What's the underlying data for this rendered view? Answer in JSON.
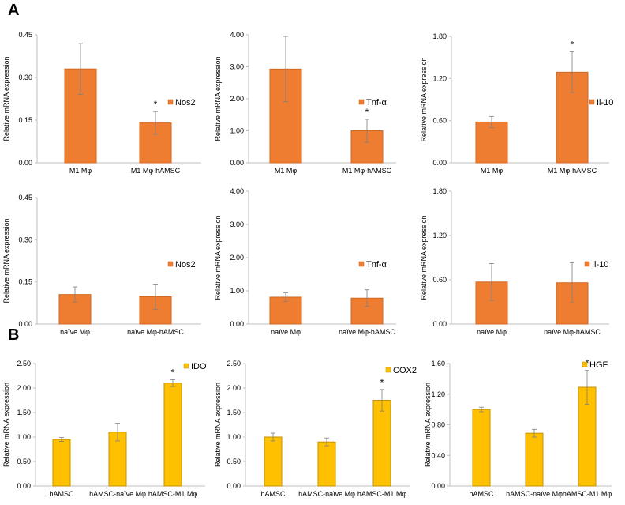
{
  "panel_labels": [
    "A",
    "B"
  ],
  "colors": {
    "orange_fill": "#ee7d31",
    "orange_edge": "#d06820",
    "yellow_fill": "#ffc000",
    "yellow_edge": "#c59300",
    "axis": "#bfbfbf",
    "text": "#000000"
  },
  "chart_data": [
    {
      "type": "bar",
      "ylabel": "Relative mRNA expression",
      "legend": "Nos2",
      "legend_pos": "right",
      "categories": [
        "M1 Mφ",
        "M1 Mφ-hAMSC"
      ],
      "values": [
        0.33,
        0.14
      ],
      "errors": [
        0.09,
        0.04
      ],
      "ylim": [
        0,
        0.45
      ],
      "ticks": [
        "0.00",
        "0.15",
        "0.30",
        "0.45"
      ],
      "significance": [
        "",
        "*"
      ],
      "color": "orange"
    },
    {
      "type": "bar",
      "ylabel": "Relative mRNA expression",
      "legend": "Tnf-α",
      "legend_pos": "right",
      "categories": [
        "M1 Mφ",
        "M1 Mφ-hAMSC"
      ],
      "values": [
        2.93,
        1.0
      ],
      "errors": [
        1.02,
        0.36
      ],
      "ylim": [
        0,
        4
      ],
      "ticks": [
        "0.00",
        "1.00",
        "2.00",
        "3.00",
        "4.00"
      ],
      "significance": [
        "",
        "*"
      ],
      "color": "orange"
    },
    {
      "type": "bar",
      "ylabel": "Relative mRNA expression",
      "legend": "Il-10",
      "legend_pos": "right",
      "categories": [
        "M1 Mφ",
        "M1 Mφ-hAMSC"
      ],
      "values": [
        0.58,
        1.29
      ],
      "errors": [
        0.08,
        0.29
      ],
      "ylim": [
        0,
        1.8
      ],
      "ticks": [
        "0.00",
        "0.60",
        "1.20",
        "1.80"
      ],
      "significance": [
        "",
        "*"
      ],
      "color": "orange"
    },
    {
      "type": "bar",
      "ylabel": "Relative mRNA expression",
      "legend": "Nos2",
      "legend_pos": "right",
      "categories": [
        "naïve Mφ",
        "naïve Mφ-hAMSC"
      ],
      "values": [
        0.105,
        0.097
      ],
      "errors": [
        0.027,
        0.045
      ],
      "ylim": [
        0,
        0.45
      ],
      "ticks": [
        "0.00",
        "0.15",
        "0.30",
        "0.45"
      ],
      "significance": [
        "",
        ""
      ],
      "color": "orange"
    },
    {
      "type": "bar",
      "ylabel": "Relative mRNA  expression",
      "legend": "Tnf-α",
      "legend_pos": "right",
      "categories": [
        "naïve Mφ",
        "naïve Mφ-hAMSC"
      ],
      "values": [
        0.81,
        0.78
      ],
      "errors": [
        0.13,
        0.25
      ],
      "ylim": [
        0,
        4
      ],
      "ticks": [
        "0.00",
        "1.00",
        "2.00",
        "3.00",
        "4.00"
      ],
      "significance": [
        "",
        ""
      ],
      "color": "orange"
    },
    {
      "type": "bar",
      "ylabel": "Relative mRNA expression",
      "legend": "Il-10",
      "legend_pos": "right",
      "categories": [
        "naïve Mφ",
        "naïve Mφ-hAMSC"
      ],
      "values": [
        0.57,
        0.56
      ],
      "errors": [
        0.25,
        0.27
      ],
      "ylim": [
        0,
        1.8
      ],
      "ticks": [
        "0.00",
        "0.60",
        "1.20",
        "1.80"
      ],
      "significance": [
        "",
        ""
      ],
      "color": "orange"
    },
    {
      "type": "bar",
      "ylabel": "Relative mRNA expression",
      "legend": "IDO",
      "legend_pos": "top-right",
      "categories": [
        "hAMSC",
        "hAMSC-naïve Mφ",
        "hAMSC-M1 Mφ"
      ],
      "values": [
        0.95,
        1.1,
        2.1
      ],
      "errors": [
        0.04,
        0.18,
        0.07
      ],
      "ylim": [
        0,
        2.5
      ],
      "ticks": [
        "0.00",
        "0.50",
        "1.00",
        "1.50",
        "2.00",
        "2.50"
      ],
      "significance": [
        "",
        "",
        "*"
      ],
      "color": "yellow"
    },
    {
      "type": "bar",
      "ylabel": "Relative mRNA expression",
      "legend": "COX2",
      "legend_pos": "top-right",
      "categories": [
        "hAMSC",
        "hAMSC-naïve Mφ",
        "hAMSC-M1 Mφ"
      ],
      "values": [
        1.0,
        0.9,
        1.75
      ],
      "errors": [
        0.08,
        0.08,
        0.22
      ],
      "ylim": [
        0,
        2.5
      ],
      "ticks": [
        "0.00",
        "0.50",
        "1.00",
        "1.50",
        "2.00",
        "2.50"
      ],
      "significance": [
        "",
        "",
        "*"
      ],
      "color": "yellow"
    },
    {
      "type": "bar",
      "ylabel": "Relative mRNA expression",
      "legend": "HGF",
      "legend_pos": "top-right",
      "categories": [
        "hAMSC",
        "hAMSC-naïve Mφ",
        "hAMSC-M1 Mφ"
      ],
      "values": [
        1.0,
        0.69,
        1.29
      ],
      "errors": [
        0.03,
        0.05,
        0.22
      ],
      "ylim": [
        0,
        1.6
      ],
      "ticks": [
        "0.00",
        "0.40",
        "0.80",
        "1.20",
        "1.60"
      ],
      "significance": [
        "",
        "",
        "*"
      ],
      "color": "yellow"
    }
  ]
}
